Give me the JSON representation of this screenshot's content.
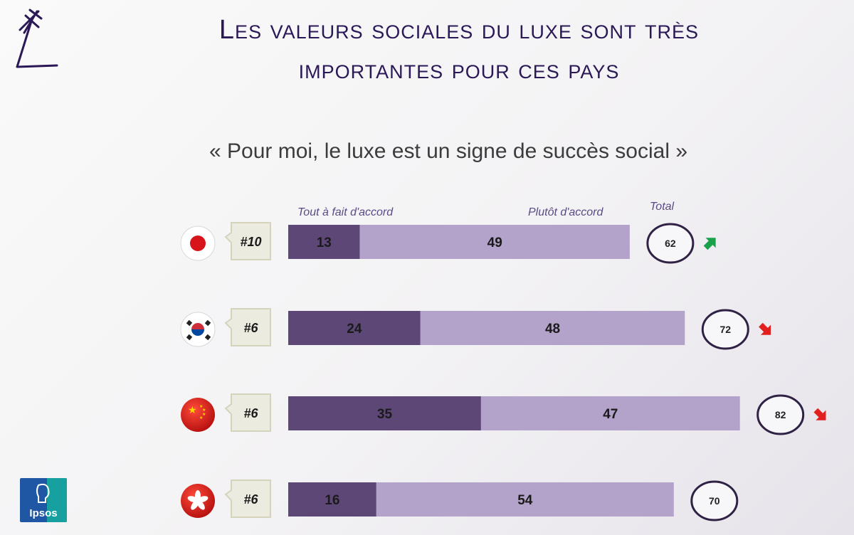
{
  "header": {
    "title_line1": "Les valeurs sociales du luxe sont très",
    "title_line2": "importantes pour ces pays",
    "subtitle": "« Pour moi, le luxe est un signe de succès social »"
  },
  "colors": {
    "dark_segment": "#5d4777",
    "light_segment": "#b3a2c9",
    "title": "#2b1856",
    "circle_border": "#2f2245",
    "arrow_up": "#1aa24a",
    "arrow_down": "#e31e1e"
  },
  "brand": {
    "logo_text": "Ipsos",
    "mark_icon": "star-figure-icon"
  },
  "chart_data": {
    "type": "bar",
    "orientation": "horizontal",
    "stacked": true,
    "legend": {
      "series1": "Tout à fait d'accord",
      "series2": "Plutôt d'accord",
      "total": "Total"
    },
    "categories": [
      "Japon",
      "Corée du Sud",
      "Chine",
      "Hong Kong"
    ],
    "flag_icons": [
      "japan-flag-icon",
      "south-korea-flag-icon",
      "china-flag-icon",
      "hong-kong-flag-icon"
    ],
    "series": [
      {
        "name": "Tout à fait d'accord",
        "values": [
          13,
          24,
          35,
          16
        ]
      },
      {
        "name": "Plutôt d'accord",
        "values": [
          49,
          48,
          47,
          54
        ]
      }
    ],
    "totals": [
      "62",
      "72",
      "82",
      "70"
    ],
    "ranks": [
      "#10",
      "#6",
      "#6",
      "#6"
    ],
    "trend": [
      "up",
      "down",
      "down",
      "none"
    ],
    "xlim": [
      0,
      100
    ]
  }
}
